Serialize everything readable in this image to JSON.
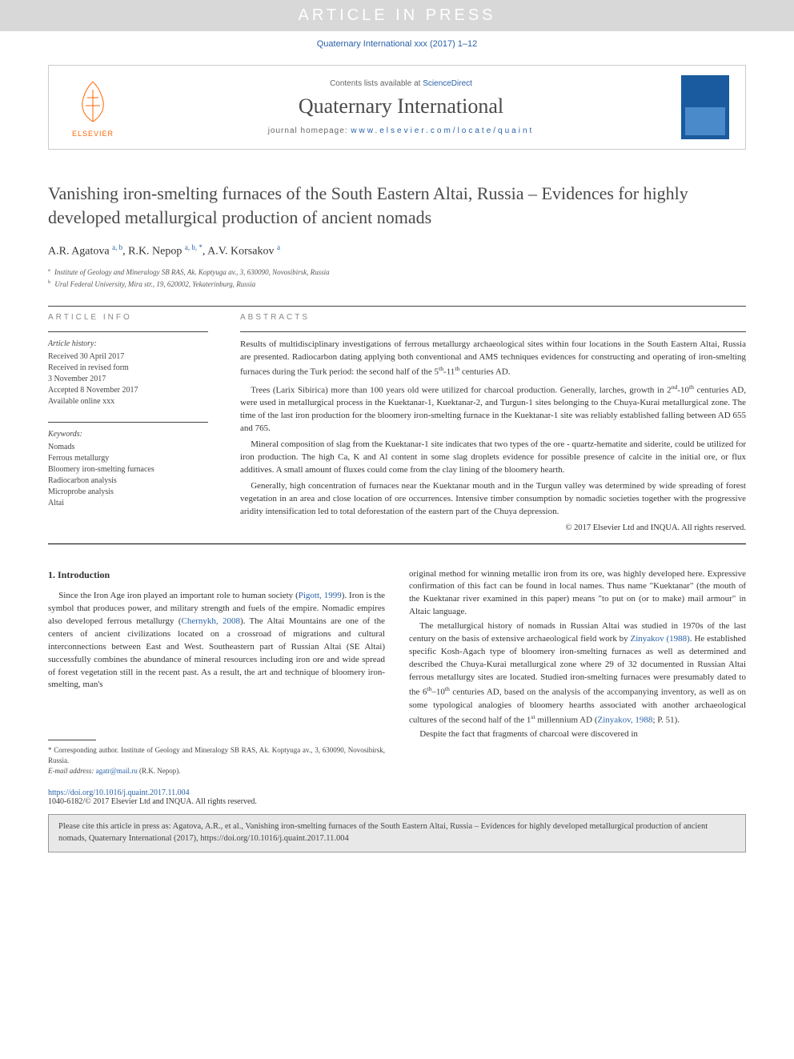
{
  "banner": "ARTICLE IN PRESS",
  "top_citation": "Quaternary International xxx (2017) 1–12",
  "header": {
    "contents_text": "Contents lists available at ",
    "contents_link": "ScienceDirect",
    "journal_name": "Quaternary International",
    "homepage_text": "journal homepage: ",
    "homepage_link": "www.elsevier.com/locate/quaint",
    "publisher_name": "ELSEVIER"
  },
  "title": "Vanishing iron-smelting furnaces of the South Eastern Altai, Russia – Evidences for highly developed metallurgical production of ancient nomads",
  "authors_html": "A.R. Agatova <sup>a, b</sup>, R.K. Nepop <sup>a, b, *</sup>, A.V. Korsakov <sup>a</sup>",
  "affiliations": [
    {
      "sup": "a",
      "text": "Institute of Geology and Mineralogy SB RAS, Ak. Koptyuga av., 3, 630090, Novosibirsk, Russia"
    },
    {
      "sup": "b",
      "text": "Ural Federal University, Mira str., 19, 620002, Yekaterinburg, Russia"
    }
  ],
  "article_info": {
    "heading": "ARTICLE INFO",
    "history_label": "Article history:",
    "history": [
      "Received 30 April 2017",
      "Received in revised form",
      "3 November 2017",
      "Accepted 8 November 2017",
      "Available online xxx"
    ],
    "keywords_label": "Keywords:",
    "keywords": [
      "Nomads",
      "Ferrous metallurgy",
      "Bloomery iron-smelting furnaces",
      "Radiocarbon analysis",
      "Microprobe analysis",
      "Altai"
    ]
  },
  "abstract": {
    "heading": "ABSTRACTS",
    "paragraphs": [
      "Results of multidisciplinary investigations of ferrous metallurgy archaeological sites within four locations in the South Eastern Altai, Russia are presented. Radiocarbon dating applying both conventional and AMS techniques evidences for constructing and operating of iron-smelting furnaces during the Turk period: the second half of the 5th-11th centuries AD.",
      "Trees (Larix Sibirica) more than 100 years old were utilized for charcoal production. Generally, larches, growth in 2nd-10th centuries AD, were used in metallurgical process in the Kuektanar-1, Kuektanar-2, and Turgun-1 sites belonging to the Chuya-Kurai metallurgical zone. The time of the last iron production for the bloomery iron-smelting furnace in the Kuektanar-1 site was reliably established falling between AD 655 and 765.",
      "Mineral composition of slag from the Kuektanar-1 site indicates that two types of the ore - quartz-hematite and siderite, could be utilized for iron production. The high Ca, K and Al content in some slag droplets evidence for possible presence of calcite in the initial ore, or flux additives. A small amount of fluxes could come from the clay lining of the bloomery hearth.",
      "Generally, high concentration of furnaces near the Kuektanar mouth and in the Turgun valley was determined by wide spreading of forest vegetation in an area and close location of ore occurrences. Intensive timber consumption by nomadic societies together with the progressive aridity intensification led to total deforestation of the eastern part of the Chuya depression."
    ],
    "copyright": "© 2017 Elsevier Ltd and INQUA. All rights reserved."
  },
  "body": {
    "section_heading": "1. Introduction",
    "left_para": "Since the Iron Age iron played an important role to human society (Pigott, 1999). Iron is the symbol that produces power, and military strength and fuels of the empire. Nomadic empires also developed ferrous metallurgy (Chernykh, 2008). The Altai Mountains are one of the centers of ancient civilizations located on a crossroad of migrations and cultural interconnections between East and West. Southeastern part of Russian Altai (SE Altai) successfully combines the abundance of mineral resources including iron ore and wide spread of forest vegetation still in the recent past. As a result, the art and technique of bloomery iron-smelting, man's",
    "right_para1": "original method for winning metallic iron from its ore, was highly developed here. Expressive confirmation of this fact can be found in local names. Thus name \"Kuektanar\" (the mouth of the Kuektanar river examined in this paper) means \"to put on (or to make) mail armour\" in Altaic language.",
    "right_para2": "The metallurgical history of nomads in Russian Altai was studied in 1970s of the last century on the basis of extensive archaeological field work by Zinyakov (1988). He established specific Kosh-Agach type of bloomery iron-smelting furnaces as well as determined and described the Chuya-Kurai metallurgical zone where 29 of 32 documented in Russian Altai ferrous metallurgy sites are located. Studied iron-smelting furnaces were presumably dated to the 6th–10th centuries AD, based on the analysis of the accompanying inventory, as well as on some typological analogies of bloomery hearths associated with another archaeological cultures of the second half of the 1st millennium AD (Zinyakov, 1988; P. 51).",
    "right_para3": "Despite the fact that fragments of charcoal were discovered in"
  },
  "footnotes": {
    "corresponding": "* Corresponding author. Institute of Geology and Mineralogy SB RAS, Ak. Koptyuga av., 3, 630090, Novosibirsk, Russia.",
    "email_label": "E-mail address: ",
    "email": "agatr@mail.ru",
    "email_person": " (R.K. Nepop)."
  },
  "doi": {
    "url": "https://doi.org/10.1016/j.quaint.2017.11.004",
    "issn": "1040-6182/© 2017 Elsevier Ltd and INQUA. All rights reserved."
  },
  "cite_box": "Please cite this article in press as: Agatova, A.R., et al., Vanishing iron-smelting furnaces of the South Eastern Altai, Russia – Evidences for highly developed metallurgical production of ancient nomads, Quaternary International (2017), https://doi.org/10.1016/j.quaint.2017.11.004",
  "links": {
    "pigott": "Pigott, 1999",
    "chernykh": "Chernykh, 2008",
    "zinyakov1": "Zinyakov (1988)",
    "zinyakov2": "Zinyakov, 1988"
  },
  "colors": {
    "banner_bg": "#d8d8d8",
    "link": "#2962a8",
    "elsevier_orange": "#ff6600",
    "cite_box_bg": "#e8e8e8"
  }
}
